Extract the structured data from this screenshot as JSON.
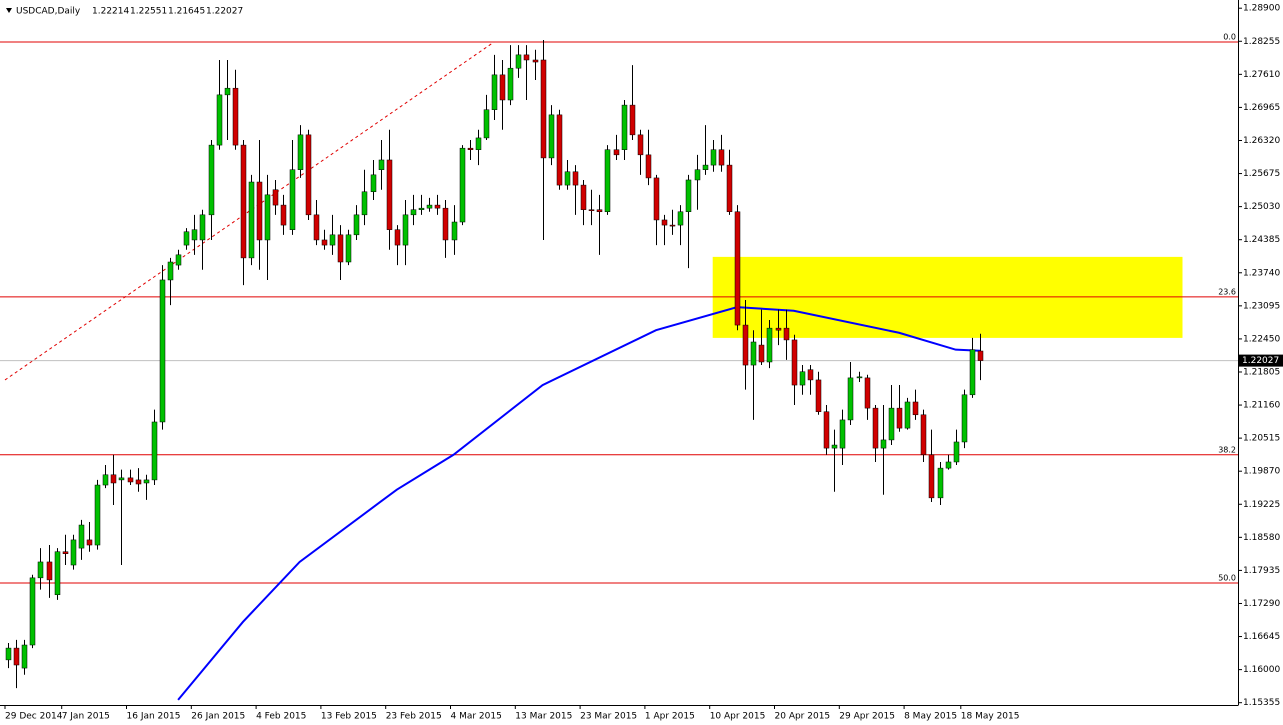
{
  "chart_data": {
    "type": "candlestick",
    "symbol": "USDCAD,Daily",
    "categories": [
      "29 Dec 2014",
      null,
      null,
      null,
      null,
      null,
      null,
      "7 Jan 2015",
      null,
      null,
      null,
      null,
      null,
      null,
      null,
      "16 Jan 2015",
      null,
      null,
      null,
      null,
      null,
      null,
      null,
      "26 Jan 2015",
      null,
      null,
      null,
      null,
      null,
      null,
      null,
      "4 Feb 2015",
      null,
      null,
      null,
      null,
      null,
      null,
      null,
      "13 Feb 2015",
      null,
      null,
      null,
      null,
      null,
      null,
      null,
      "23 Feb 2015",
      null,
      null,
      null,
      null,
      null,
      null,
      null,
      "4 Mar 2015",
      null,
      null,
      null,
      null,
      null,
      null,
      null,
      "13 Mar 2015",
      null,
      null,
      null,
      null,
      null,
      null,
      null,
      "23 Mar 2015",
      null,
      null,
      null,
      null,
      null,
      null,
      null,
      "1 Apr 2015",
      null,
      null,
      null,
      null,
      null,
      null,
      null,
      "10 Apr 2015",
      null,
      null,
      null,
      null,
      null,
      null,
      null,
      "20 Apr 2015",
      null,
      null,
      null,
      null,
      null,
      null,
      null,
      "29 Apr 2015",
      null,
      null,
      null,
      null,
      null,
      null,
      null,
      "8 May 2015",
      null,
      null,
      null,
      null,
      null,
      null,
      "18 May 2015",
      null,
      null
    ],
    "open": [
      1.1619,
      1.1642,
      1.1603,
      1.1648,
      1.1779,
      1.181,
      1.1746,
      1.183,
      1.1804,
      1.1837,
      1.1853,
      1.1843,
      1.196,
      1.198,
      1.197,
      1.1974,
      1.197,
      1.1964,
      1.197,
      1.2083,
      1.236,
      1.2389,
      1.2428,
      1.2438,
      1.2438,
      1.2487,
      1.2623,
      1.2721,
      1.2734,
      1.2623,
      1.2403,
      1.2551,
      1.2438,
      1.2536,
      1.2506,
      1.2458,
      1.2575,
      1.2643,
      1.2487,
      1.2438,
      1.2428,
      1.2448,
      1.2395,
      1.2448,
      1.2487,
      1.2532,
      1.2575,
      1.2594,
      1.2458,
      1.2428,
      1.2487,
      1.2497,
      1.25,
      1.2506,
      1.25,
      1.2438,
      1.2473,
      1.2617,
      1.2614,
      1.2637,
      1.2692,
      1.276,
      1.2711,
      1.2773,
      1.2799,
      1.2789,
      1.2789,
      1.2598,
      1.2682,
      1.2545,
      1.2571,
      1.2545,
      1.2497,
      1.2497,
      1.2493,
      1.2614,
      1.2614,
      1.2701,
      1.2643,
      1.2604,
      1.2559,
      1.2477,
      1.2467,
      1.2467,
      1.2493,
      1.2555,
      1.2575,
      1.2584,
      1.2614,
      1.2584,
      1.2493,
      1.2272,
      1.2194,
      1.2233,
      1.22,
      1.2266,
      1.2266,
      1.2243,
      1.2155,
      1.2185,
      1.2165,
      1.2103,
      1.2032,
      1.2032,
      1.2087,
      1.2169,
      1.2169,
      1.211,
      1.2032,
      1.2048,
      1.211,
      1.2071,
      1.2122,
      1.2097,
      1.2019,
      1.1935,
      1.1993,
      1.2005,
      1.2044,
      1.2136,
      1.22214
    ],
    "high": [
      1.1652,
      1.1658,
      1.1658,
      1.1785,
      1.1837,
      1.1843,
      1.1837,
      1.1863,
      1.1863,
      1.1892,
      1.1888,
      1.197,
      1.1999,
      1.2019,
      1.199,
      1.199,
      1.1993,
      1.198,
      1.2107,
      1.2389,
      1.2403,
      1.2419,
      1.2461,
      1.2487,
      1.2497,
      1.2633,
      1.2789,
      1.2789,
      1.277,
      1.2633,
      1.2565,
      1.2633,
      1.2565,
      1.2555,
      1.2526,
      1.2633,
      1.2662,
      1.2653,
      1.2516,
      1.2458,
      1.2487,
      1.2467,
      1.2458,
      1.2506,
      1.2575,
      1.2594,
      1.2633,
      1.2653,
      1.2467,
      1.2516,
      1.2526,
      1.2526,
      1.252,
      1.2526,
      1.2516,
      1.2506,
      1.2623,
      1.2633,
      1.2653,
      1.2721,
      1.2799,
      1.2789,
      1.2818,
      1.2818,
      1.2818,
      1.2809,
      1.2828,
      1.2701,
      1.2692,
      1.2594,
      1.2584,
      1.2555,
      1.2536,
      1.2526,
      1.2623,
      1.2643,
      1.2711,
      1.2779,
      1.2653,
      1.2653,
      1.2565,
      1.2487,
      1.2497,
      1.2506,
      1.2565,
      1.2604,
      1.2662,
      1.2633,
      1.2643,
      1.2614,
      1.2506,
      1.2321,
      1.2262,
      1.2302,
      1.2282,
      1.2302,
      1.2302,
      1.2253,
      1.2194,
      1.2194,
      1.2181,
      1.2116,
      1.2068,
      1.2107,
      1.22,
      1.2181,
      1.2175,
      1.2116,
      1.2116,
      1.2155,
      1.2155,
      1.213,
      1.2146,
      1.2107,
      1.2068,
      1.2005,
      1.2019,
      1.2068,
      1.2146,
      1.2247,
      1.22551
    ],
    "low": [
      1.1603,
      1.1564,
      1.159,
      1.1642,
      1.1756,
      1.174,
      1.1736,
      1.1804,
      1.1795,
      1.1814,
      1.183,
      1.1834,
      1.1954,
      1.1921,
      1.1804,
      1.196,
      1.1947,
      1.1931,
      1.196,
      1.2068,
      1.2311,
      1.238,
      1.2419,
      1.2409,
      1.238,
      1.2438,
      1.2614,
      1.2633,
      1.2614,
      1.235,
      1.2389,
      1.238,
      1.236,
      1.2487,
      1.2448,
      1.2448,
      1.2559,
      1.2477,
      1.2428,
      1.2419,
      1.2409,
      1.236,
      1.2389,
      1.2438,
      1.2467,
      1.2516,
      1.2536,
      1.2419,
      1.2389,
      1.2389,
      1.2467,
      1.2487,
      1.2493,
      1.2487,
      1.2403,
      1.2409,
      1.2467,
      1.2594,
      1.2584,
      1.2633,
      1.2672,
      1.2653,
      1.2701,
      1.2754,
      1.2711,
      1.275,
      1.2438,
      1.2584,
      1.2536,
      1.2536,
      1.2487,
      1.2467,
      1.2467,
      1.2409,
      1.2487,
      1.2594,
      1.2594,
      1.2633,
      1.2565,
      1.2545,
      1.2428,
      1.2428,
      1.2448,
      1.2428,
      1.2383,
      1.2497,
      1.2565,
      1.2571,
      1.2571,
      1.2487,
      1.2262,
      1.2146,
      1.2087,
      1.2194,
      1.2188,
      1.2233,
      1.2204,
      1.2116,
      1.2136,
      1.2136,
      1.2097,
      1.2019,
      1.1947,
      1.1999,
      1.2077,
      1.2161,
      1.2087,
      1.2005,
      1.1941,
      1.2038,
      1.2064,
      1.2068,
      1.2087,
      1.2005,
      1.1927,
      1.1921,
      1.199,
      1.1999,
      1.2032,
      1.213,
      1.21645
    ],
    "close": [
      1.1642,
      1.1609,
      1.1648,
      1.1779,
      1.181,
      1.1775,
      1.183,
      1.1826,
      1.1853,
      1.1882,
      1.1843,
      1.196,
      1.198,
      1.1964,
      1.1974,
      1.1966,
      1.1962,
      1.197,
      1.2083,
      1.236,
      1.2395,
      1.2409,
      1.2454,
      1.2458,
      1.2487,
      1.2623,
      1.2721,
      1.2734,
      1.2623,
      1.2403,
      1.2551,
      1.2438,
      1.2526,
      1.2506,
      1.2467,
      1.2575,
      1.2643,
      1.2487,
      1.2438,
      1.2428,
      1.2448,
      1.2395,
      1.2448,
      1.2487,
      1.2532,
      1.2565,
      1.2594,
      1.2458,
      1.2428,
      1.2487,
      1.2497,
      1.25,
      1.2506,
      1.25,
      1.2438,
      1.2473,
      1.2617,
      1.2614,
      1.2637,
      1.2692,
      1.276,
      1.2711,
      1.2773,
      1.2799,
      1.2789,
      1.2785,
      1.2598,
      1.2682,
      1.2545,
      1.2571,
      1.2545,
      1.2497,
      1.2495,
      1.2493,
      1.2614,
      1.2604,
      1.2701,
      1.2643,
      1.2604,
      1.2559,
      1.2477,
      1.2467,
      1.2465,
      1.2493,
      1.2555,
      1.2575,
      1.2584,
      1.2614,
      1.2584,
      1.2493,
      1.2272,
      1.2194,
      1.2239,
      1.22,
      1.2266,
      1.2262,
      1.2243,
      1.2155,
      1.2181,
      1.2165,
      1.2103,
      1.2032,
      1.2038,
      1.2087,
      1.2169,
      1.2171,
      1.211,
      1.2032,
      1.2048,
      1.211,
      1.2071,
      1.2122,
      1.2097,
      1.2019,
      1.1935,
      1.1993,
      1.2005,
      1.2044,
      1.2136,
      1.2224,
      1.22027
    ],
    "bull_color": "#00c000",
    "bear_color": "#d00000",
    "wick_color": "#000000",
    "ylim": [
      1.1531,
      1.2906
    ],
    "yticks": [
      {
        "value": 1.289,
        "label": "1.28900"
      },
      {
        "value": 1.28255,
        "label": "1.28255"
      },
      {
        "value": 1.2761,
        "label": "1.27610"
      },
      {
        "value": 1.26965,
        "label": "1.26965"
      },
      {
        "value": 1.2632,
        "label": "1.26320"
      },
      {
        "value": 1.25675,
        "label": "1.25675"
      },
      {
        "value": 1.2503,
        "label": "1.25030"
      },
      {
        "value": 1.24385,
        "label": "1.24385"
      },
      {
        "value": 1.2374,
        "label": "1.23740"
      },
      {
        "value": 1.23095,
        "label": "1.23095"
      },
      {
        "value": 1.2245,
        "label": "1.22450"
      },
      {
        "value": 1.21805,
        "label": "1.21805"
      },
      {
        "value": 1.2116,
        "label": "1.21160"
      },
      {
        "value": 1.20515,
        "label": "1.20515"
      },
      {
        "value": 1.1987,
        "label": "1.19870"
      },
      {
        "value": 1.19225,
        "label": "1.19225"
      },
      {
        "value": 1.1858,
        "label": "1.18580"
      },
      {
        "value": 1.17935,
        "label": "1.17935"
      },
      {
        "value": 1.1729,
        "label": "1.17290"
      },
      {
        "value": 1.16645,
        "label": "1.16645"
      },
      {
        "value": 1.16,
        "label": "1.16000"
      },
      {
        "value": 1.15355,
        "label": "1.15355"
      }
    ],
    "fib_levels": [
      {
        "label": "0.0",
        "value": 1.2824
      },
      {
        "label": "23.6",
        "value": 1.2327
      },
      {
        "label": "38.2",
        "value": 1.2019
      },
      {
        "label": "50.0",
        "value": 1.1769
      }
    ],
    "fib_color": "#e00000",
    "trendline": {
      "x": [
        0,
        60
      ],
      "y": [
        1.2165,
        1.2824
      ]
    },
    "zone": {
      "x": [
        87,
        145
      ],
      "y": [
        1.2247,
        1.2405
      ],
      "color": "#ffff00"
    },
    "moving_average": {
      "color": "#0000ff",
      "x": [
        21,
        29,
        36,
        48,
        55,
        66,
        80,
        90,
        97,
        110,
        117,
        120
      ],
      "values": [
        1.1541,
        1.1693,
        1.181,
        1.1951,
        1.2019,
        1.2155,
        1.2262,
        1.2307,
        1.23,
        1.2257,
        1.2224,
        1.2222
      ]
    },
    "price_line_color": "#c0c0c0"
  }
}
